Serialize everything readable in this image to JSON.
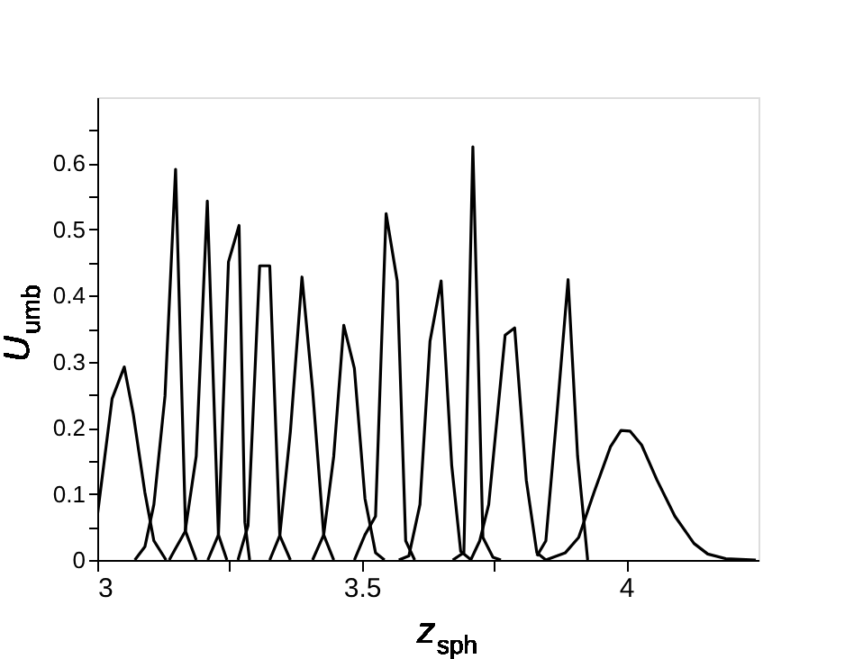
{
  "chart_data": {
    "type": "line",
    "xlabel": "z$_{sph}$",
    "ylabel": "U$_{umb}$",
    "xlim": [
      3,
      4.25
    ],
    "ylim": [
      0,
      0.7
    ],
    "xticks": [
      3,
      {
        "value": 3.25,
        "label": null
      },
      3.5,
      {
        "value": 3.75,
        "label": null
      },
      4
    ],
    "yticks": [
      0,
      {
        "value": 0.05,
        "label": null
      },
      0.1,
      {
        "value": 0.15,
        "label": null
      },
      0.2,
      {
        "value": 0.25,
        "label": null
      },
      0.3,
      {
        "value": 0.35,
        "label": null
      },
      0.4,
      {
        "value": 0.45,
        "label": null
      },
      0.5,
      {
        "value": 0.55,
        "label": null
      },
      0.6,
      {
        "value": 0.65,
        "label": null
      }
    ],
    "grid": false,
    "legend": false,
    "marker": "none",
    "line_style": "solid",
    "series": [
      {
        "color": "#000000",
        "x": [
          3.0,
          3.028,
          3.051,
          3.068,
          3.09,
          3.107,
          3.13
        ],
        "values": [
          0.066,
          0.244,
          0.292,
          0.221,
          0.102,
          0.029,
          0
        ]
      },
      {
        "color": "#000000",
        "x": [
          3.071,
          3.09,
          3.107,
          3.128,
          3.148,
          3.167,
          3.187
        ],
        "values": [
          0,
          0.02,
          0.084,
          0.248,
          0.591,
          0.043,
          0
        ]
      },
      {
        "color": "#000000",
        "x": [
          3.136,
          3.147,
          3.166,
          3.187,
          3.208,
          3.229,
          3.245
        ],
        "values": [
          0,
          0.016,
          0.043,
          0.157,
          0.543,
          0.038,
          0
        ]
      },
      {
        "color": "#000000",
        "x": [
          3.209,
          3.229,
          3.248,
          3.268,
          3.279,
          3.288
        ],
        "values": [
          0,
          0.038,
          0.451,
          0.506,
          0.057,
          0
        ]
      },
      {
        "color": "#000000",
        "x": [
          3.266,
          3.285,
          3.307,
          3.326,
          3.345,
          3.365
        ],
        "values": [
          0,
          0.052,
          0.445,
          0.445,
          0.037,
          0
        ]
      },
      {
        "color": "#000000",
        "x": [
          3.326,
          3.345,
          3.365,
          3.387,
          3.407,
          3.428,
          3.447
        ],
        "values": [
          0,
          0.037,
          0.194,
          0.428,
          0.258,
          0.038,
          0
        ]
      },
      {
        "color": "#000000",
        "x": [
          3.407,
          3.428,
          3.447,
          3.466,
          3.486,
          3.506,
          3.526,
          3.543
        ],
        "values": [
          0,
          0.038,
          0.157,
          0.355,
          0.29,
          0.093,
          0.011,
          0
        ]
      },
      {
        "color": "#000000",
        "x": [
          3.486,
          3.506,
          3.526,
          3.546,
          3.567,
          3.583,
          3.6
        ],
        "values": [
          0,
          0.038,
          0.066,
          0.524,
          0.422,
          0.029,
          0
        ]
      },
      {
        "color": "#000000",
        "x": [
          3.57,
          3.589,
          3.61,
          3.629,
          3.65,
          3.67,
          3.687,
          3.707
        ],
        "values": [
          0,
          0.006,
          0.084,
          0.331,
          0.422,
          0.143,
          0.013,
          0
        ]
      },
      {
        "color": "#000000",
        "x": [
          3.672,
          3.693,
          3.71,
          3.729,
          3.748,
          3.763
        ],
        "values": [
          0,
          0.011,
          0.625,
          0.034,
          0.004,
          0
        ]
      },
      {
        "color": "#000000",
        "x": [
          3.706,
          3.723,
          3.74,
          3.771,
          3.789,
          3.811,
          3.831,
          3.848
        ],
        "values": [
          0,
          0.029,
          0.084,
          0.34,
          0.351,
          0.121,
          0.011,
          0
        ]
      },
      {
        "color": "#000000",
        "x": [
          3.831,
          3.848,
          3.868,
          3.89,
          3.908,
          3.927
        ],
        "values": [
          0.006,
          0.029,
          0.212,
          0.424,
          0.157,
          0
        ]
      },
      {
        "color": "#000000",
        "x": [
          3.848,
          3.885,
          3.91,
          3.939,
          3.97,
          3.99,
          4.007,
          4.029,
          4.058,
          4.092,
          4.128,
          4.154,
          4.188,
          4.245
        ],
        "values": [
          0,
          0.011,
          0.034,
          0.102,
          0.171,
          0.196,
          0.195,
          0.174,
          0.121,
          0.066,
          0.025,
          0.009,
          0.002,
          0
        ]
      }
    ]
  }
}
